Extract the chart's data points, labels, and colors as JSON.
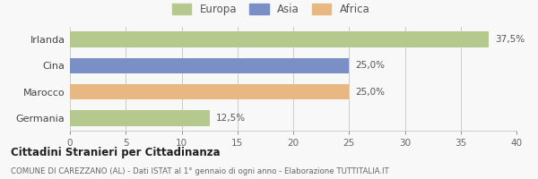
{
  "categories": [
    "Irlanda",
    "Cina",
    "Marocco",
    "Germania"
  ],
  "values": [
    37.5,
    25.0,
    25.0,
    12.5
  ],
  "colors": [
    "#b5c98e",
    "#7b8fc7",
    "#e8b882",
    "#b5c98e"
  ],
  "bar_labels": [
    "37,5%",
    "25,0%",
    "25,0%",
    "12,5%"
  ],
  "legend": [
    {
      "label": "Europa",
      "color": "#b5c98e"
    },
    {
      "label": "Asia",
      "color": "#7b8fc7"
    },
    {
      "label": "Africa",
      "color": "#e8b882"
    }
  ],
  "xlim": [
    0,
    40
  ],
  "xticks": [
    0,
    5,
    10,
    15,
    20,
    25,
    30,
    35,
    40
  ],
  "title": "Cittadini Stranieri per Cittadinanza",
  "subtitle": "COMUNE DI CAREZZANO (AL) - Dati ISTAT al 1° gennaio di ogni anno - Elaborazione TUTTITALIA.IT",
  "bg_color": "#f8f8f8",
  "bar_height": 0.6
}
